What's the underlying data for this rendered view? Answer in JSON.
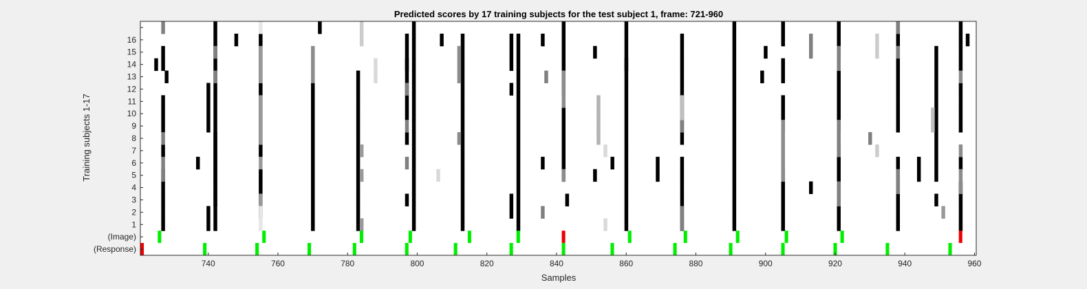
{
  "chart_data": {
    "type": "heatmap",
    "title": "Predicted scores by 17 training subjects for the test subject 1, frame: 721-960",
    "xlabel": "Samples",
    "ylabel": "Training subjects 1-17",
    "xlim": [
      721,
      960
    ],
    "xticks": [
      740,
      760,
      780,
      800,
      820,
      840,
      860,
      880,
      900,
      920,
      940,
      960
    ],
    "row_labels": [
      "(Response)",
      "(Image)",
      "1",
      "2",
      "3",
      "4",
      "5",
      "6",
      "7",
      "8",
      "9",
      "10",
      "11",
      "12",
      "13",
      "14",
      "15",
      "16",
      ""
    ],
    "grid": false,
    "colors": {
      "background": "#ffffff",
      "correct": "#00ee00",
      "wrong": "#ee0000",
      "frame": "#f0f0f0"
    },
    "response": [
      {
        "x": 721,
        "color": "red"
      },
      {
        "x": 739,
        "color": "green"
      },
      {
        "x": 754,
        "color": "green"
      },
      {
        "x": 769,
        "color": "green"
      },
      {
        "x": 782,
        "color": "green"
      },
      {
        "x": 797,
        "color": "green"
      },
      {
        "x": 811,
        "color": "green"
      },
      {
        "x": 827,
        "color": "green"
      },
      {
        "x": 842,
        "color": "green"
      },
      {
        "x": 856,
        "color": "green"
      },
      {
        "x": 874,
        "color": "green"
      },
      {
        "x": 890,
        "color": "green"
      },
      {
        "x": 905,
        "color": "green"
      },
      {
        "x": 920,
        "color": "green"
      },
      {
        "x": 935,
        "color": "green"
      },
      {
        "x": 953,
        "color": "green"
      }
    ],
    "image": [
      {
        "x": 726,
        "color": "green"
      },
      {
        "x": 756,
        "color": "green"
      },
      {
        "x": 784,
        "color": "green"
      },
      {
        "x": 798,
        "color": "green"
      },
      {
        "x": 815,
        "color": "green"
      },
      {
        "x": 829,
        "color": "green"
      },
      {
        "x": 842,
        "color": "red"
      },
      {
        "x": 861,
        "color": "green"
      },
      {
        "x": 877,
        "color": "green"
      },
      {
        "x": 892,
        "color": "green"
      },
      {
        "x": 906,
        "color": "green"
      },
      {
        "x": 922,
        "color": "green"
      },
      {
        "x": 956,
        "color": "red"
      }
    ],
    "scores": [
      {
        "x": 742,
        "g": 0,
        "rows": [
          1,
          2,
          3,
          4,
          5,
          6,
          7,
          8,
          9,
          10,
          11,
          12,
          13,
          14,
          15,
          16,
          17
        ]
      },
      {
        "x": 770,
        "g": 0,
        "rows": [
          1,
          2,
          3,
          4,
          5,
          6,
          7,
          8,
          9,
          10,
          11,
          12
        ]
      },
      {
        "x": 799,
        "g": 0,
        "rows": [
          1,
          2,
          3,
          4,
          5,
          6,
          7,
          8,
          9,
          10,
          11,
          12,
          13,
          14,
          15,
          16,
          17
        ]
      },
      {
        "x": 829,
        "g": 0,
        "rows": [
          1,
          2,
          3,
          4,
          5,
          6,
          7,
          8,
          9,
          10,
          11,
          12,
          13,
          14,
          15,
          16
        ]
      },
      {
        "x": 842,
        "g": 0,
        "rows": [
          5,
          6,
          7,
          8,
          9,
          10,
          12,
          13,
          14,
          15,
          16,
          17
        ]
      },
      {
        "x": 860,
        "g": 0,
        "rows": [
          1,
          2,
          3,
          4,
          5,
          6,
          7,
          8,
          9,
          10,
          11,
          12,
          13,
          14,
          15,
          16,
          17
        ]
      },
      {
        "x": 891,
        "g": 0,
        "rows": [
          1,
          2,
          3,
          4,
          5,
          6,
          7,
          8,
          9,
          10,
          11,
          12,
          13,
          14,
          15,
          16,
          17
        ]
      },
      {
        "x": 905,
        "g": 0,
        "rows": [
          1,
          2,
          3,
          4,
          5,
          9,
          10,
          11,
          13,
          14,
          16,
          17
        ]
      },
      {
        "x": 921,
        "g": 0,
        "rows": [
          1,
          2,
          3,
          4,
          5,
          6,
          7,
          9,
          10,
          11,
          12,
          13,
          15,
          16,
          17
        ]
      },
      {
        "x": 956,
        "g": 0,
        "rows": [
          1,
          2,
          3,
          4,
          6,
          9,
          10,
          11,
          12,
          14,
          15,
          16,
          17
        ]
      },
      {
        "x": 727,
        "g": 0,
        "rows": [
          1,
          2,
          3,
          4,
          5,
          7,
          9,
          10,
          11,
          14,
          15
        ]
      },
      {
        "x": 740,
        "g": 0,
        "rows": [
          1,
          2,
          9,
          10,
          11,
          12
        ]
      },
      {
        "x": 755,
        "g": 0,
        "rows": [
          2,
          3,
          4,
          5,
          7,
          8,
          9,
          10,
          11,
          12,
          13,
          14,
          15,
          16
        ]
      },
      {
        "x": 783,
        "g": 0,
        "rows": [
          1,
          2,
          3,
          4,
          5,
          6,
          7,
          8,
          9,
          10,
          11,
          12,
          13
        ]
      },
      {
        "x": 797,
        "g": 0,
        "rows": [
          3,
          8,
          10,
          11,
          12,
          13,
          14,
          15,
          16
        ]
      },
      {
        "x": 813,
        "g": 0,
        "rows": [
          1,
          2,
          3,
          4,
          5,
          6,
          7,
          8,
          9,
          10,
          11,
          12,
          13,
          14,
          15,
          16
        ]
      },
      {
        "x": 827,
        "g": 0,
        "rows": [
          2,
          3,
          12,
          14,
          15,
          16
        ]
      },
      {
        "x": 876,
        "g": 0,
        "rows": [
          1,
          2,
          3,
          4,
          5,
          6,
          8,
          9,
          10,
          11,
          12,
          13,
          14,
          15,
          16
        ]
      },
      {
        "x": 938,
        "g": 0,
        "rows": [
          1,
          2,
          3,
          4,
          5,
          6,
          9,
          10,
          11,
          12,
          13,
          14,
          15,
          16,
          17
        ]
      },
      {
        "x": 949,
        "g": 0,
        "rows": [
          3,
          5,
          6,
          7,
          8,
          9,
          10,
          11,
          12,
          13,
          14,
          15
        ]
      },
      {
        "x": 727,
        "g": 0.5,
        "rows": [
          17,
          5,
          8,
          6
        ]
      },
      {
        "x": 742,
        "g": 0.5,
        "rows": [
          15,
          13
        ]
      },
      {
        "x": 755,
        "g": 0.6,
        "rows": [
          3,
          6,
          8,
          9,
          10,
          11,
          13,
          14,
          15
        ]
      },
      {
        "x": 770,
        "g": 0.55,
        "rows": [
          13,
          14,
          15
        ]
      },
      {
        "x": 784,
        "g": 0.6,
        "rows": [
          1,
          5,
          7
        ]
      },
      {
        "x": 797,
        "g": 0.5,
        "rows": [
          6,
          9,
          12
        ]
      },
      {
        "x": 812,
        "g": 0.55,
        "rows": [
          8,
          13,
          14,
          15
        ]
      },
      {
        "x": 842,
        "g": 0.55,
        "rows": [
          5,
          11,
          12,
          13
        ]
      },
      {
        "x": 876,
        "g": 0.5,
        "rows": [
          1,
          2,
          9,
          10
        ]
      },
      {
        "x": 905,
        "g": 0.55,
        "rows": [
          5,
          6,
          7,
          8,
          9
        ]
      },
      {
        "x": 921,
        "g": 0.5,
        "rows": [
          3,
          4,
          7,
          8,
          9,
          14,
          15
        ]
      },
      {
        "x": 938,
        "g": 0.5,
        "rows": [
          4,
          5,
          15,
          17
        ]
      },
      {
        "x": 956,
        "g": 0.55,
        "rows": [
          4,
          5,
          7,
          13
        ]
      },
      {
        "x": 852,
        "g": 0.7,
        "rows": [
          8,
          9,
          10,
          11
        ]
      },
      {
        "x": 876,
        "g": 0.75,
        "rows": [
          10,
          11
        ]
      },
      {
        "x": 854,
        "g": 0.85,
        "rows": [
          1,
          7
        ]
      },
      {
        "x": 932,
        "g": 0.8,
        "rows": [
          7,
          15,
          16
        ]
      },
      {
        "x": 948,
        "g": 0.75,
        "rows": [
          9,
          10
        ]
      },
      {
        "x": 784,
        "g": 0.8,
        "rows": [
          16,
          17
        ]
      },
      {
        "x": 755,
        "g": 0.9,
        "rows": [
          1,
          2,
          17
        ]
      },
      {
        "x": 742,
        "g": 0,
        "rows": [
          3,
          4,
          5,
          6,
          7,
          8
        ]
      },
      {
        "x": 728,
        "g": 0,
        "rows": [
          13
        ]
      },
      {
        "x": 725,
        "g": 0,
        "rows": [
          14
        ]
      },
      {
        "x": 737,
        "g": 0,
        "rows": [
          6
        ]
      },
      {
        "x": 748,
        "g": 0,
        "rows": [
          16
        ]
      },
      {
        "x": 772,
        "g": 0,
        "rows": [
          17
        ]
      },
      {
        "x": 797,
        "g": 0,
        "rows": [
          14
        ]
      },
      {
        "x": 807,
        "g": 0,
        "rows": [
          16
        ]
      },
      {
        "x": 836,
        "g": 0,
        "rows": [
          6,
          16
        ]
      },
      {
        "x": 836,
        "g": 0.5,
        "rows": [
          2
        ]
      },
      {
        "x": 837,
        "g": 0.5,
        "rows": [
          13
        ]
      },
      {
        "x": 843,
        "g": 0,
        "rows": [
          3
        ]
      },
      {
        "x": 851,
        "g": 0,
        "rows": [
          5,
          15
        ]
      },
      {
        "x": 856,
        "g": 0,
        "rows": [
          6
        ]
      },
      {
        "x": 860,
        "g": 0,
        "rows": [
          14
        ]
      },
      {
        "x": 869,
        "g": 0,
        "rows": [
          5,
          6
        ]
      },
      {
        "x": 899,
        "g": 0,
        "rows": [
          13
        ]
      },
      {
        "x": 900,
        "g": 0,
        "rows": [
          15
        ]
      },
      {
        "x": 913,
        "g": 0.5,
        "rows": [
          16,
          15
        ]
      },
      {
        "x": 913,
        "g": 0,
        "rows": [
          4
        ]
      },
      {
        "x": 930,
        "g": 0.5,
        "rows": [
          8
        ]
      },
      {
        "x": 944,
        "g": 0,
        "rows": [
          5,
          6
        ]
      },
      {
        "x": 951,
        "g": 0.6,
        "rows": [
          2
        ]
      },
      {
        "x": 958,
        "g": 0,
        "rows": [
          16
        ]
      },
      {
        "x": 806,
        "g": 0.85,
        "rows": [
          5
        ]
      },
      {
        "x": 788,
        "g": 0.85,
        "rows": [
          13,
          14
        ]
      }
    ]
  }
}
